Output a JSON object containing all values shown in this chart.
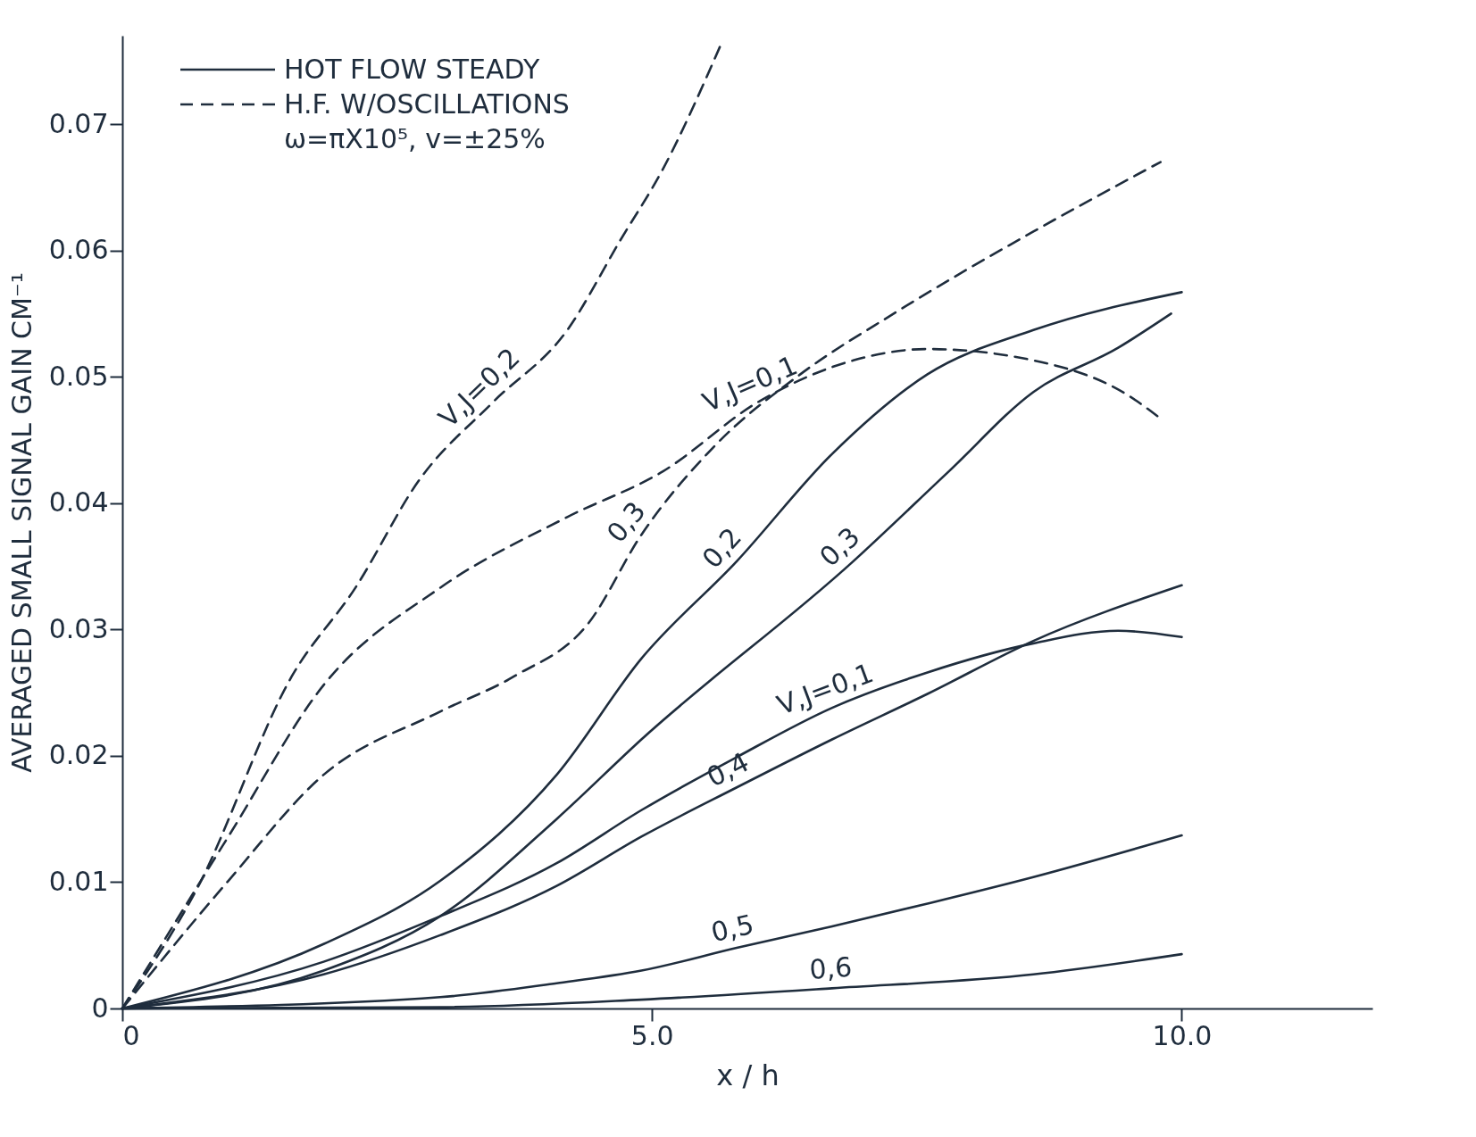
{
  "chart_data": {
    "type": "line",
    "xlabel": "x / h",
    "ylabel": "AVERAGED SMALL SIGNAL GAIN CM⁻¹",
    "xlim": [
      0,
      11.8
    ],
    "ylim": [
      0,
      0.077
    ],
    "xticks": [
      0,
      {
        "value": 5,
        "label": "5.0"
      },
      {
        "value": 10,
        "label": "10.0"
      }
    ],
    "yticks": [
      0,
      0.01,
      0.02,
      0.03,
      0.04,
      0.05,
      0.06,
      0.07
    ],
    "grid": false,
    "series": [
      {
        "name": "V,J=0,2",
        "color": "#1f2d3d",
        "line_style": "dashed",
        "x": [
          0,
          0.7,
          1.6,
          2.2,
          2.8,
          3.5,
          4.2,
          4.7,
          5.1,
          5.65
        ],
        "values": [
          0,
          0.0094,
          0.0263,
          0.0333,
          0.0418,
          0.048,
          0.0537,
          0.0608,
          0.0664,
          0.0763
        ]
      },
      {
        "name": "V,J=0,1",
        "color": "#1f2d3d",
        "line_style": "dashed",
        "x": [
          0,
          1.0,
          1.9,
          3.0,
          4.2,
          5.1,
          6.0,
          6.9,
          7.6,
          8.6,
          9.5,
          9.8
        ],
        "values": [
          0,
          0.0136,
          0.0256,
          0.0333,
          0.0389,
          0.0425,
          0.048,
          0.0513,
          0.0522,
          0.0513,
          0.0485,
          0.0467
        ]
      },
      {
        "name": "0,3",
        "color": "#1f2d3d",
        "line_style": "dashed",
        "x": [
          0,
          1.0,
          1.9,
          3.0,
          3.7,
          4.4,
          4.9,
          5.6,
          6.4,
          7.3,
          8.6,
          9.8
        ],
        "values": [
          0,
          0.0101,
          0.0185,
          0.0235,
          0.0263,
          0.0305,
          0.0375,
          0.0446,
          0.0502,
          0.0551,
          0.0615,
          0.067
        ]
      },
      {
        "name": "0,2",
        "color": "#1f2d3d",
        "line_style": "solid",
        "x": [
          0,
          1.9,
          3.0,
          4.1,
          4.9,
          5.8,
          6.7,
          7.6,
          8.6,
          10.0
        ],
        "values": [
          0,
          0.0051,
          0.0101,
          0.0185,
          0.0277,
          0.0354,
          0.0439,
          0.0502,
          0.0537,
          0.0567
        ]
      },
      {
        "name": "0,3",
        "color": "#1f2d3d",
        "line_style": "solid",
        "x": [
          0,
          1.9,
          3.0,
          4.1,
          4.9,
          6.9,
          7.8,
          8.6,
          9.4,
          9.9
        ],
        "values": [
          0,
          0.003,
          0.0073,
          0.015,
          0.0213,
          0.0354,
          0.0425,
          0.0488,
          0.0523,
          0.055
        ]
      },
      {
        "name": "V,J=0,1",
        "color": "#1f2d3d",
        "line_style": "solid",
        "x": [
          0,
          1.9,
          3.0,
          4.1,
          4.9,
          5.8,
          6.7,
          7.6,
          8.6,
          9.4,
          10.0
        ],
        "values": [
          0,
          0.0037,
          0.0073,
          0.0115,
          0.0157,
          0.0199,
          0.0238,
          0.0266,
          0.0289,
          0.0299,
          0.0294
        ]
      },
      {
        "name": "0,4",
        "color": "#1f2d3d",
        "line_style": "solid",
        "x": [
          0,
          1.9,
          3.0,
          4.1,
          4.9,
          5.8,
          6.7,
          7.6,
          8.6,
          10.0
        ],
        "values": [
          0,
          0.0027,
          0.0058,
          0.0097,
          0.0136,
          0.0175,
          0.0213,
          0.0249,
          0.0291,
          0.0335
        ]
      },
      {
        "name": "0,5",
        "color": "#1f2d3d",
        "line_style": "solid",
        "x": [
          0,
          3.0,
          4.1,
          4.9,
          5.8,
          6.7,
          7.6,
          8.6,
          10.0
        ],
        "values": [
          0,
          0.0009,
          0.002,
          0.003,
          0.0048,
          0.0065,
          0.0083,
          0.0104,
          0.0137
        ]
      },
      {
        "name": "0,6",
        "color": "#1f2d3d",
        "line_style": "solid",
        "x": [
          0,
          3.0,
          4.9,
          6.7,
          8.6,
          10.0
        ],
        "values": [
          0,
          0.0001,
          0.0007,
          0.0016,
          0.0027,
          0.0043
        ]
      }
    ],
    "annotations": [
      "HOT FLOW STEADY",
      "H.F. W/OSCILLATIONS",
      "ω=πX10⁵, v=±25%"
    ]
  }
}
